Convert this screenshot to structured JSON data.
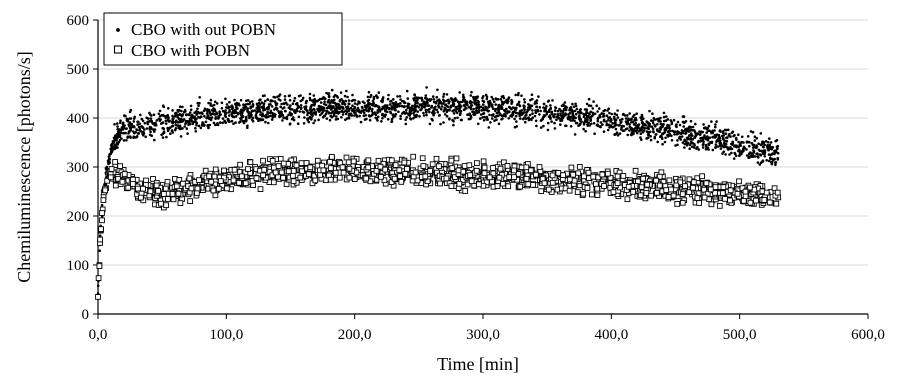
{
  "chart_data": {
    "type": "scatter",
    "title": "",
    "xlabel": "Time [min]",
    "ylabel": "Chemiluminescence [photons/s]",
    "xlim": [
      0,
      600
    ],
    "ylim": [
      0,
      600
    ],
    "x_ticks": [
      0,
      100,
      200,
      300,
      400,
      500,
      600
    ],
    "x_tick_labels": [
      "0,0",
      "100,0",
      "200,0",
      "300,0",
      "400,0",
      "500,0",
      "600,0"
    ],
    "y_ticks": [
      0,
      100,
      200,
      300,
      400,
      500,
      600
    ],
    "y_tick_labels": [
      "0",
      "100",
      "200",
      "300",
      "400",
      "500",
      "600"
    ],
    "grid": "horizontal",
    "legend_position": "top-left",
    "series": [
      {
        "name": "CBO with out POBN",
        "marker": "dot",
        "x": [
          0,
          2,
          5,
          8,
          12,
          18,
          25,
          35,
          50,
          75,
          100,
          125,
          150,
          175,
          200,
          225,
          250,
          275,
          300,
          325,
          350,
          375,
          400,
          425,
          450,
          475,
          500,
          515,
          530
        ],
        "y": [
          40,
          180,
          260,
          310,
          350,
          375,
          380,
          380,
          390,
          400,
          410,
          415,
          418,
          420,
          422,
          422,
          422,
          422,
          420,
          418,
          412,
          405,
          395,
          385,
          372,
          360,
          345,
          335,
          328
        ]
      },
      {
        "name": "CBO with POBN",
        "marker": "open-square",
        "x": [
          0,
          2,
          5,
          8,
          12,
          18,
          25,
          35,
          50,
          75,
          100,
          125,
          150,
          175,
          200,
          225,
          250,
          275,
          300,
          325,
          350,
          375,
          400,
          425,
          450,
          475,
          500,
          515,
          530
        ],
        "y": [
          35,
          170,
          250,
          285,
          290,
          280,
          265,
          250,
          245,
          260,
          275,
          285,
          290,
          292,
          292,
          290,
          288,
          285,
          282,
          280,
          275,
          272,
          268,
          262,
          258,
          252,
          245,
          240,
          238
        ]
      }
    ]
  }
}
